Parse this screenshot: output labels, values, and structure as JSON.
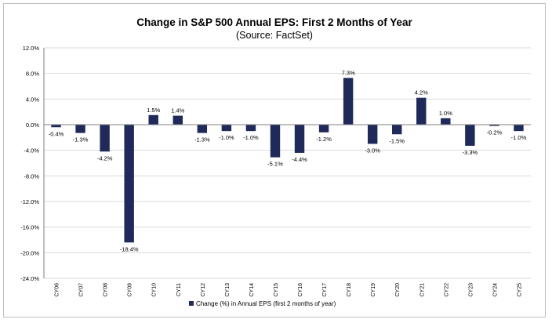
{
  "chart_data": {
    "type": "bar",
    "title": "Change in S&P 500 Annual EPS: First 2 Months of Year",
    "subtitle": "(Source: FactSet)",
    "categories": [
      "CY06",
      "CY07",
      "CY08",
      "CY09",
      "CY10",
      "CY11",
      "CY12",
      "CY13",
      "CY14",
      "CY15",
      "CY16",
      "CY17",
      "CY18",
      "CY19",
      "CY20",
      "CY21",
      "CY22",
      "CY23",
      "CY24",
      "CY25"
    ],
    "series": [
      {
        "name": "Change (%) in Annual EPS (first 2 months of year)",
        "values": [
          -0.4,
          -1.3,
          -4.2,
          -18.4,
          1.5,
          1.4,
          -1.3,
          -1.0,
          -1.0,
          -5.1,
          -4.4,
          -1.2,
          7.3,
          -3.0,
          -1.5,
          4.2,
          1.0,
          -3.3,
          -0.2,
          -1.0
        ],
        "labels": [
          "-0.4%",
          "-1.3%",
          "-4.2%",
          "-18.4%",
          "1.5%",
          "1.4%",
          "-1.3%",
          "-1.0%",
          "-1.0%",
          "-5.1%",
          "-4.4%",
          "-1.2%",
          "7.3%",
          "-3.0%",
          "-1.5%",
          "4.2%",
          "1.0%",
          "-3.3%",
          "-0.2%",
          "-1.0%"
        ]
      }
    ],
    "ylim": [
      -24,
      12
    ],
    "yticks": [
      12,
      8,
      4,
      0,
      -4,
      -8,
      -12,
      -16,
      -20,
      -24
    ],
    "ytick_labels": [
      "12.0%",
      "8.0%",
      "4.0%",
      "0.0%",
      "-4.0%",
      "-8.0%",
      "-12.0%",
      "-16.0%",
      "-20.0%",
      "-24.0%"
    ],
    "grid": true,
    "legend_position": "bottom",
    "colors": {
      "bar": "#1f2a5a",
      "grid": "#d9d9d9",
      "axis": "#7f7f7f",
      "text": "#000000"
    }
  }
}
